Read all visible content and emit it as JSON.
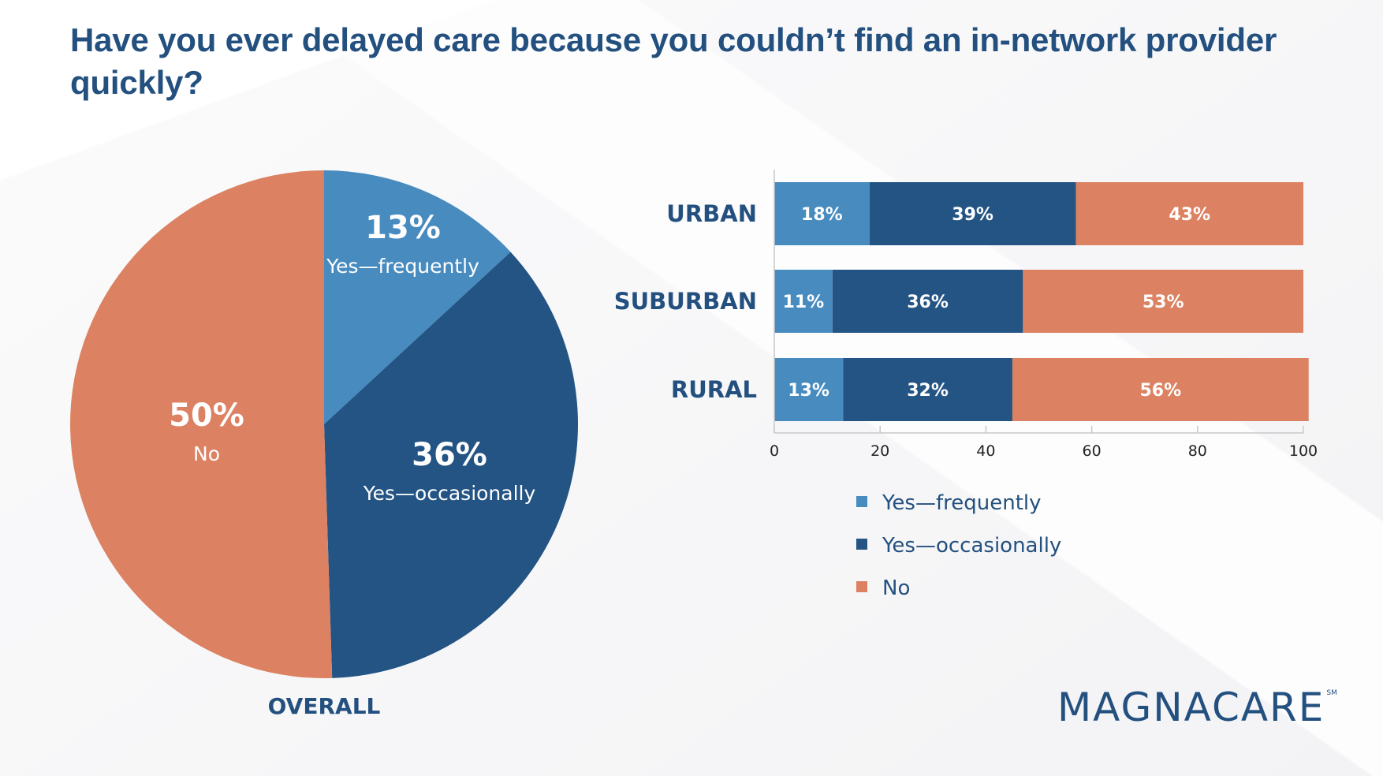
{
  "title": "Have you ever delayed care because you couldn’t find an in-network provider quickly?",
  "colors": {
    "yes_frequently": "#478bbf",
    "yes_occasionally": "#235483",
    "no": "#dc8262",
    "title": "#23507f"
  },
  "logo": {
    "text": "MAGNACARE",
    "mark": "SM"
  },
  "chart_data": [
    {
      "type": "pie",
      "caption": "OVERALL",
      "slices": [
        {
          "key": "yes_frequently",
          "label": "Yes—frequently",
          "value": 13,
          "display": "13%"
        },
        {
          "key": "yes_occasionally",
          "label": "Yes—occasionally",
          "value": 36,
          "display": "36%"
        },
        {
          "key": "no",
          "label": "No",
          "value": 50,
          "display": "50%"
        }
      ],
      "start": "12 o'clock",
      "direction": "clockwise"
    },
    {
      "type": "bar",
      "orientation": "horizontal",
      "stacked": true,
      "categories": [
        "URBAN",
        "SUBURBAN",
        "RURAL"
      ],
      "series": [
        {
          "key": "yes_frequently",
          "name": "Yes—frequently",
          "values": [
            18,
            11,
            13
          ]
        },
        {
          "key": "yes_occasionally",
          "name": "Yes—occasionally",
          "values": [
            39,
            36,
            32
          ]
        },
        {
          "key": "no",
          "name": "No",
          "values": [
            43,
            53,
            56
          ]
        }
      ],
      "xlim": [
        0,
        100
      ],
      "xticks": [
        "0",
        "20",
        "40",
        "60",
        "80",
        "100"
      ],
      "data_label_suffix": "%",
      "grid": false,
      "legend": [
        "Yes—frequently",
        "Yes—occasionally",
        "No"
      ],
      "legend_position": "bottom"
    }
  ]
}
